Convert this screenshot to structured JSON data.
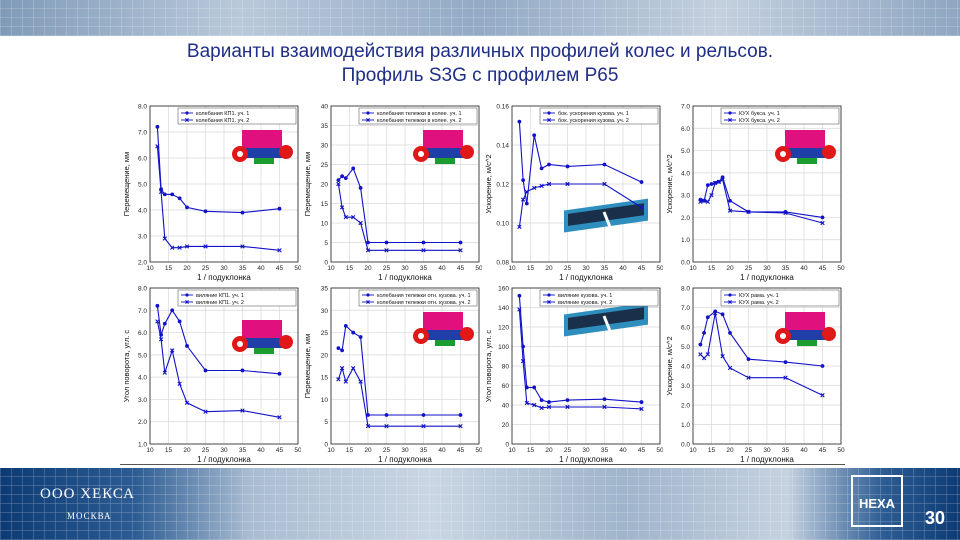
{
  "header": {
    "title_line1": "Варианты взаимодействия различных профилей колес и рельсов.",
    "title_line2": "Профиль S3G с профилем Р65"
  },
  "footer": {
    "company": "ООО ХЕКСА",
    "city": "МОСКВА",
    "logo": "HEXA",
    "page": "30"
  },
  "colors": {
    "series": "#1212c8",
    "title": "#1f2e86",
    "band_dark": "#0d3a73"
  },
  "icons": [
    "bogie-model-icon",
    "carbody-model-icon"
  ],
  "chart_data": [
    {
      "type": "line",
      "ylabel": "Перемещение, мм",
      "xlabel": "1 / подуклонка",
      "xlim": [
        10,
        50
      ],
      "ylim": [
        2,
        8
      ],
      "yticks": [
        "2.0",
        "3.0",
        "4.0",
        "5.0",
        "6.0",
        "7.0",
        "8.0"
      ],
      "xticks": [
        "10",
        "15",
        "20",
        "25",
        "30",
        "35",
        "40",
        "45",
        "50"
      ],
      "inset": "bogie",
      "series": [
        {
          "name": "колебания КП1. уч. 1",
          "marker": "circle",
          "x": [
            12,
            13,
            14,
            16,
            18,
            20,
            25,
            35,
            45
          ],
          "y": [
            7.2,
            4.8,
            4.6,
            4.6,
            4.45,
            4.1,
            3.95,
            3.9,
            4.05
          ]
        },
        {
          "name": "колебания КП1. уч. 2",
          "marker": "x",
          "x": [
            12,
            13,
            14,
            16,
            18,
            20,
            25,
            35,
            45
          ],
          "y": [
            6.45,
            4.7,
            2.9,
            2.55,
            2.55,
            2.6,
            2.6,
            2.6,
            2.45
          ]
        }
      ]
    },
    {
      "type": "line",
      "ylabel": "Перемещение, мм",
      "xlabel": "1 / подуклонка",
      "xlim": [
        10,
        50
      ],
      "ylim": [
        0,
        40
      ],
      "yticks": [
        "0",
        "5",
        "10",
        "15",
        "20",
        "25",
        "30",
        "35",
        "40"
      ],
      "xticks": [
        "10",
        "15",
        "20",
        "25",
        "30",
        "35",
        "40",
        "45",
        "50"
      ],
      "inset": "bogie",
      "series": [
        {
          "name": "колебания тележки в колее. уч. 1",
          "marker": "circle",
          "x": [
            12,
            13,
            14,
            16,
            18,
            20,
            25,
            35,
            45
          ],
          "y": [
            21,
            22,
            21.5,
            24,
            19,
            5,
            5,
            5,
            5
          ]
        },
        {
          "name": "колебания тележки в колее. уч. 2",
          "marker": "x",
          "x": [
            12,
            13,
            14,
            16,
            18,
            20,
            25,
            35,
            45
          ],
          "y": [
            20,
            14,
            11.5,
            11.5,
            10,
            3,
            3,
            3,
            3
          ]
        }
      ]
    },
    {
      "type": "line",
      "ylabel": "Ускорение, м/с^2",
      "xlabel": "1 / подуклонка",
      "xlim": [
        10,
        50
      ],
      "ylim": [
        0.08,
        0.16
      ],
      "yticks": [
        "0.08",
        "0.10",
        "0.12",
        "0.14",
        "0.16"
      ],
      "xticks": [
        "10",
        "15",
        "20",
        "25",
        "30",
        "35",
        "40",
        "45",
        "50"
      ],
      "inset": "carbody",
      "series": [
        {
          "name": "бок. ускорения кузова. уч. 1",
          "marker": "circle",
          "x": [
            12,
            13,
            14,
            16,
            18,
            20,
            25,
            35,
            45
          ],
          "y": [
            0.152,
            0.122,
            0.11,
            0.145,
            0.128,
            0.13,
            0.129,
            0.13,
            0.121
          ]
        },
        {
          "name": "бок. ускорения кузова. уч. 2",
          "marker": "x",
          "x": [
            12,
            13,
            14,
            16,
            18,
            20,
            25,
            35,
            45
          ],
          "y": [
            0.098,
            0.112,
            0.116,
            0.118,
            0.119,
            0.12,
            0.12,
            0.12,
            0.108
          ]
        }
      ]
    },
    {
      "type": "line",
      "ylabel": "Ускорение, м/с^2",
      "xlabel": "1 / подуклонка",
      "xlim": [
        10,
        50
      ],
      "ylim": [
        0,
        7
      ],
      "yticks": [
        "0.0",
        "1.0",
        "2.0",
        "3.0",
        "4.0",
        "5.0",
        "6.0",
        "7.0"
      ],
      "xticks": [
        "10",
        "15",
        "20",
        "25",
        "30",
        "35",
        "40",
        "45",
        "50"
      ],
      "inset": "bogie",
      "series": [
        {
          "name": "КУХ букса. уч. 1",
          "marker": "circle",
          "x": [
            12,
            13,
            14,
            15,
            16,
            17,
            18,
            20,
            25,
            35,
            45
          ],
          "y": [
            2.8,
            2.75,
            3.45,
            3.5,
            3.55,
            3.6,
            3.8,
            2.75,
            2.25,
            2.25,
            2.0
          ]
        },
        {
          "name": "КУХ букса. уч. 2",
          "marker": "x",
          "x": [
            12,
            13,
            14,
            15,
            16,
            17,
            18,
            20,
            25,
            35,
            45
          ],
          "y": [
            2.7,
            2.75,
            2.7,
            3.0,
            3.55,
            3.6,
            3.7,
            2.3,
            2.25,
            2.2,
            1.75
          ]
        }
      ]
    },
    {
      "type": "line",
      "ylabel": "Угол поворота, угл. с",
      "xlabel": "1 / подуклонка",
      "xlim": [
        10,
        50
      ],
      "ylim": [
        1,
        8
      ],
      "yticks": [
        "1.0",
        "2.0",
        "3.0",
        "4.0",
        "5.0",
        "6.0",
        "7.0",
        "8.0"
      ],
      "xticks": [
        "10",
        "15",
        "20",
        "25",
        "30",
        "35",
        "40",
        "45",
        "50"
      ],
      "inset": "bogie",
      "series": [
        {
          "name": "виляние КП1. уч. 1",
          "marker": "circle",
          "x": [
            12,
            13,
            14,
            16,
            18,
            20,
            25,
            35,
            45
          ],
          "y": [
            7.2,
            5.9,
            6.4,
            7.0,
            6.5,
            5.4,
            4.3,
            4.3,
            4.15
          ]
        },
        {
          "name": "виляние КП1. уч. 2",
          "marker": "x",
          "x": [
            12,
            13,
            14,
            16,
            18,
            20,
            25,
            35,
            45
          ],
          "y": [
            6.5,
            5.7,
            4.2,
            5.2,
            3.7,
            2.85,
            2.45,
            2.5,
            2.2
          ]
        }
      ]
    },
    {
      "type": "line",
      "ylabel": "Перемещение, мм",
      "xlabel": "1 / подуклонка",
      "xlim": [
        10,
        50
      ],
      "ylim": [
        0,
        35
      ],
      "yticks": [
        "0",
        "5",
        "10",
        "15",
        "20",
        "25",
        "30",
        "35"
      ],
      "xticks": [
        "10",
        "15",
        "20",
        "25",
        "30",
        "35",
        "40",
        "45",
        "50"
      ],
      "inset": "bogie",
      "series": [
        {
          "name": "колебания тележки отн. кузова. уч. 1",
          "marker": "circle",
          "x": [
            12,
            13,
            14,
            16,
            18,
            20,
            25,
            35,
            45
          ],
          "y": [
            21.5,
            21,
            26.5,
            25,
            24,
            6.5,
            6.5,
            6.5,
            6.5
          ]
        },
        {
          "name": "колебания тележки отн. кузова. уч. 2",
          "marker": "x",
          "x": [
            12,
            13,
            14,
            16,
            18,
            20,
            25,
            35,
            45
          ],
          "y": [
            14.5,
            17,
            14,
            17,
            14,
            4,
            4,
            4,
            4
          ]
        }
      ]
    },
    {
      "type": "line",
      "ylabel": "Угол поворота, угл. с",
      "xlabel": "1 / подуклонка",
      "xlim": [
        10,
        50
      ],
      "ylim": [
        0,
        160
      ],
      "yticks": [
        "0",
        "20",
        "40",
        "60",
        "80",
        "100",
        "120",
        "140",
        "160"
      ],
      "xticks": [
        "10",
        "15",
        "20",
        "25",
        "30",
        "35",
        "40",
        "45",
        "50"
      ],
      "inset": "carbody",
      "series": [
        {
          "name": "виляние кузова. уч. 1",
          "marker": "circle",
          "x": [
            12,
            13,
            14,
            16,
            18,
            20,
            25,
            35,
            45
          ],
          "y": [
            152,
            100,
            58,
            58,
            45,
            43,
            45,
            46,
            43
          ]
        },
        {
          "name": "виляние кузова. уч. 2",
          "marker": "x",
          "x": [
            12,
            13,
            14,
            16,
            18,
            20,
            25,
            35,
            45
          ],
          "y": [
            138,
            85,
            42,
            40,
            37,
            38,
            38,
            38,
            36
          ]
        }
      ]
    },
    {
      "type": "line",
      "ylabel": "Ускорение, м/с^2",
      "xlabel": "1 / подуклонка",
      "xlim": [
        10,
        50
      ],
      "ylim": [
        0,
        8
      ],
      "yticks": [
        "0.0",
        "1.0",
        "2.0",
        "3.0",
        "4.0",
        "5.0",
        "6.0",
        "7.0",
        "8.0"
      ],
      "xticks": [
        "10",
        "15",
        "20",
        "25",
        "30",
        "35",
        "40",
        "45",
        "50"
      ],
      "inset": "bogie",
      "series": [
        {
          "name": "КУХ рама. уч. 1",
          "marker": "circle",
          "x": [
            12,
            13,
            14,
            16,
            18,
            20,
            25,
            35,
            45
          ],
          "y": [
            5.1,
            5.7,
            6.5,
            6.8,
            6.65,
            5.7,
            4.35,
            4.2,
            4.0
          ]
        },
        {
          "name": "КУХ рама. уч. 2",
          "marker": "x",
          "x": [
            12,
            13,
            14,
            16,
            18,
            20,
            25,
            35,
            45
          ],
          "y": [
            4.6,
            4.4,
            4.6,
            6.7,
            4.5,
            3.9,
            3.4,
            3.4,
            2.5
          ]
        }
      ]
    }
  ]
}
